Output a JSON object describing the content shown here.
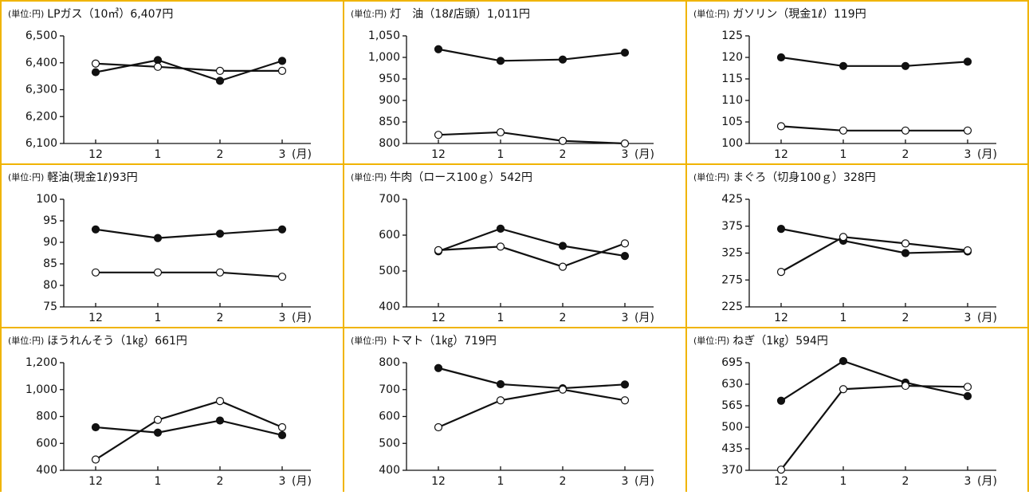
{
  "chart_data": [
    {
      "type": "line",
      "unit": "(単位:円)",
      "title": "LPガス（10㎥）6,407円",
      "categories": [
        "12",
        "1",
        "2",
        "3"
      ],
      "x_unit": "(月)",
      "ylim": [
        6100,
        6500
      ],
      "yticks": [
        {
          "value": 6100,
          "label": "6,100"
        },
        {
          "value": 6200,
          "label": "6,200"
        },
        {
          "value": 6300,
          "label": "6,300"
        },
        {
          "value": 6400,
          "label": "6,400"
        },
        {
          "value": 6500,
          "label": "6,500"
        }
      ],
      "series": [
        {
          "color": "#111111",
          "marker": "filled",
          "values": [
            6365,
            6410,
            6333,
            6407
          ]
        },
        {
          "color": "#111111",
          "marker": "open",
          "values": [
            6397,
            6385,
            6370,
            6370
          ]
        }
      ]
    },
    {
      "type": "line",
      "unit": "(単位:円)",
      "title": "灯　油（18ℓ店頭）1,011円",
      "categories": [
        "12",
        "1",
        "2",
        "3"
      ],
      "x_unit": "(月)",
      "ylim": [
        800,
        1050
      ],
      "yticks": [
        800,
        850,
        900,
        950,
        {
          "value": 1000,
          "label": "1,000"
        },
        {
          "value": 1050,
          "label": "1,050"
        }
      ],
      "series": [
        {
          "color": "#111111",
          "marker": "filled",
          "values": [
            1019,
            992,
            995,
            1011
          ]
        },
        {
          "color": "#111111",
          "marker": "open",
          "values": [
            820,
            826,
            806,
            800
          ]
        }
      ]
    },
    {
      "type": "line",
      "unit": "(単位:円)",
      "title": "ガソリン（現金1ℓ）119円",
      "categories": [
        "12",
        "1",
        "2",
        "3"
      ],
      "x_unit": "(月)",
      "ylim": [
        100,
        125
      ],
      "yticks": [
        100,
        105,
        110,
        115,
        120,
        125
      ],
      "series": [
        {
          "color": "#111111",
          "marker": "filled",
          "values": [
            120,
            118,
            118,
            119
          ]
        },
        {
          "color": "#111111",
          "marker": "open",
          "values": [
            104,
            103,
            103,
            103
          ]
        }
      ]
    },
    {
      "type": "line",
      "unit": "(単位:円)",
      "title": "軽油(現金1ℓ)93円",
      "categories": [
        "12",
        "1",
        "2",
        "3"
      ],
      "x_unit": "(月)",
      "ylim": [
        75,
        100
      ],
      "yticks": [
        75,
        80,
        85,
        90,
        95,
        100
      ],
      "series": [
        {
          "color": "#111111",
          "marker": "filled",
          "values": [
            93,
            91,
            92,
            93
          ]
        },
        {
          "color": "#111111",
          "marker": "open",
          "values": [
            83,
            83,
            83,
            82
          ]
        }
      ]
    },
    {
      "type": "line",
      "unit": "(単位:円)",
      "title": "牛肉（ロース100ｇ）542円",
      "categories": [
        "12",
        "1",
        "2",
        "3"
      ],
      "x_unit": "(月)",
      "ylim": [
        400,
        700
      ],
      "yticks": [
        400,
        500,
        600,
        700
      ],
      "series": [
        {
          "color": "#111111",
          "marker": "filled",
          "values": [
            555,
            618,
            570,
            542
          ]
        },
        {
          "color": "#111111",
          "marker": "open",
          "values": [
            558,
            568,
            512,
            577
          ]
        }
      ]
    },
    {
      "type": "line",
      "unit": "(単位:円)",
      "title": "まぐろ（切身100ｇ）328円",
      "categories": [
        "12",
        "1",
        "2",
        "3"
      ],
      "x_unit": "(月)",
      "ylim": [
        225,
        425
      ],
      "yticks": [
        225,
        275,
        325,
        375,
        425
      ],
      "series": [
        {
          "color": "#111111",
          "marker": "filled",
          "values": [
            370,
            348,
            325,
            328
          ]
        },
        {
          "color": "#111111",
          "marker": "open",
          "values": [
            290,
            355,
            343,
            330
          ]
        }
      ]
    },
    {
      "type": "line",
      "unit": "(単位:円)",
      "title": "ほうれんそう（1㎏）661円",
      "categories": [
        "12",
        "1",
        "2",
        "3"
      ],
      "x_unit": "(月)",
      "ylim": [
        400,
        1200
      ],
      "yticks": [
        400,
        600,
        800,
        {
          "value": 1000,
          "label": "1,000"
        },
        {
          "value": 1200,
          "label": "1,200"
        }
      ],
      "series": [
        {
          "color": "#111111",
          "marker": "filled",
          "values": [
            720,
            680,
            770,
            661
          ]
        },
        {
          "color": "#111111",
          "marker": "open",
          "values": [
            480,
            775,
            915,
            720
          ]
        }
      ]
    },
    {
      "type": "line",
      "unit": "(単位:円)",
      "title": "トマト（1㎏）719円",
      "categories": [
        "12",
        "1",
        "2",
        "3"
      ],
      "x_unit": "(月)",
      "ylim": [
        400,
        800
      ],
      "yticks": [
        400,
        500,
        600,
        700,
        800
      ],
      "series": [
        {
          "color": "#111111",
          "marker": "filled",
          "values": [
            780,
            720,
            705,
            719
          ]
        },
        {
          "color": "#111111",
          "marker": "open",
          "values": [
            560,
            660,
            700,
            660
          ]
        }
      ]
    },
    {
      "type": "line",
      "unit": "(単位:円)",
      "title": "ねぎ（1㎏）594円",
      "categories": [
        "12",
        "1",
        "2",
        "3"
      ],
      "x_unit": "(月)",
      "ylim": [
        370,
        695
      ],
      "yticks": [
        370,
        435,
        500,
        565,
        630,
        695
      ],
      "series": [
        {
          "color": "#111111",
          "marker": "filled",
          "values": [
            580,
            700,
            635,
            594
          ]
        },
        {
          "color": "#111111",
          "marker": "open",
          "values": [
            372,
            615,
            625,
            622
          ]
        }
      ]
    }
  ]
}
